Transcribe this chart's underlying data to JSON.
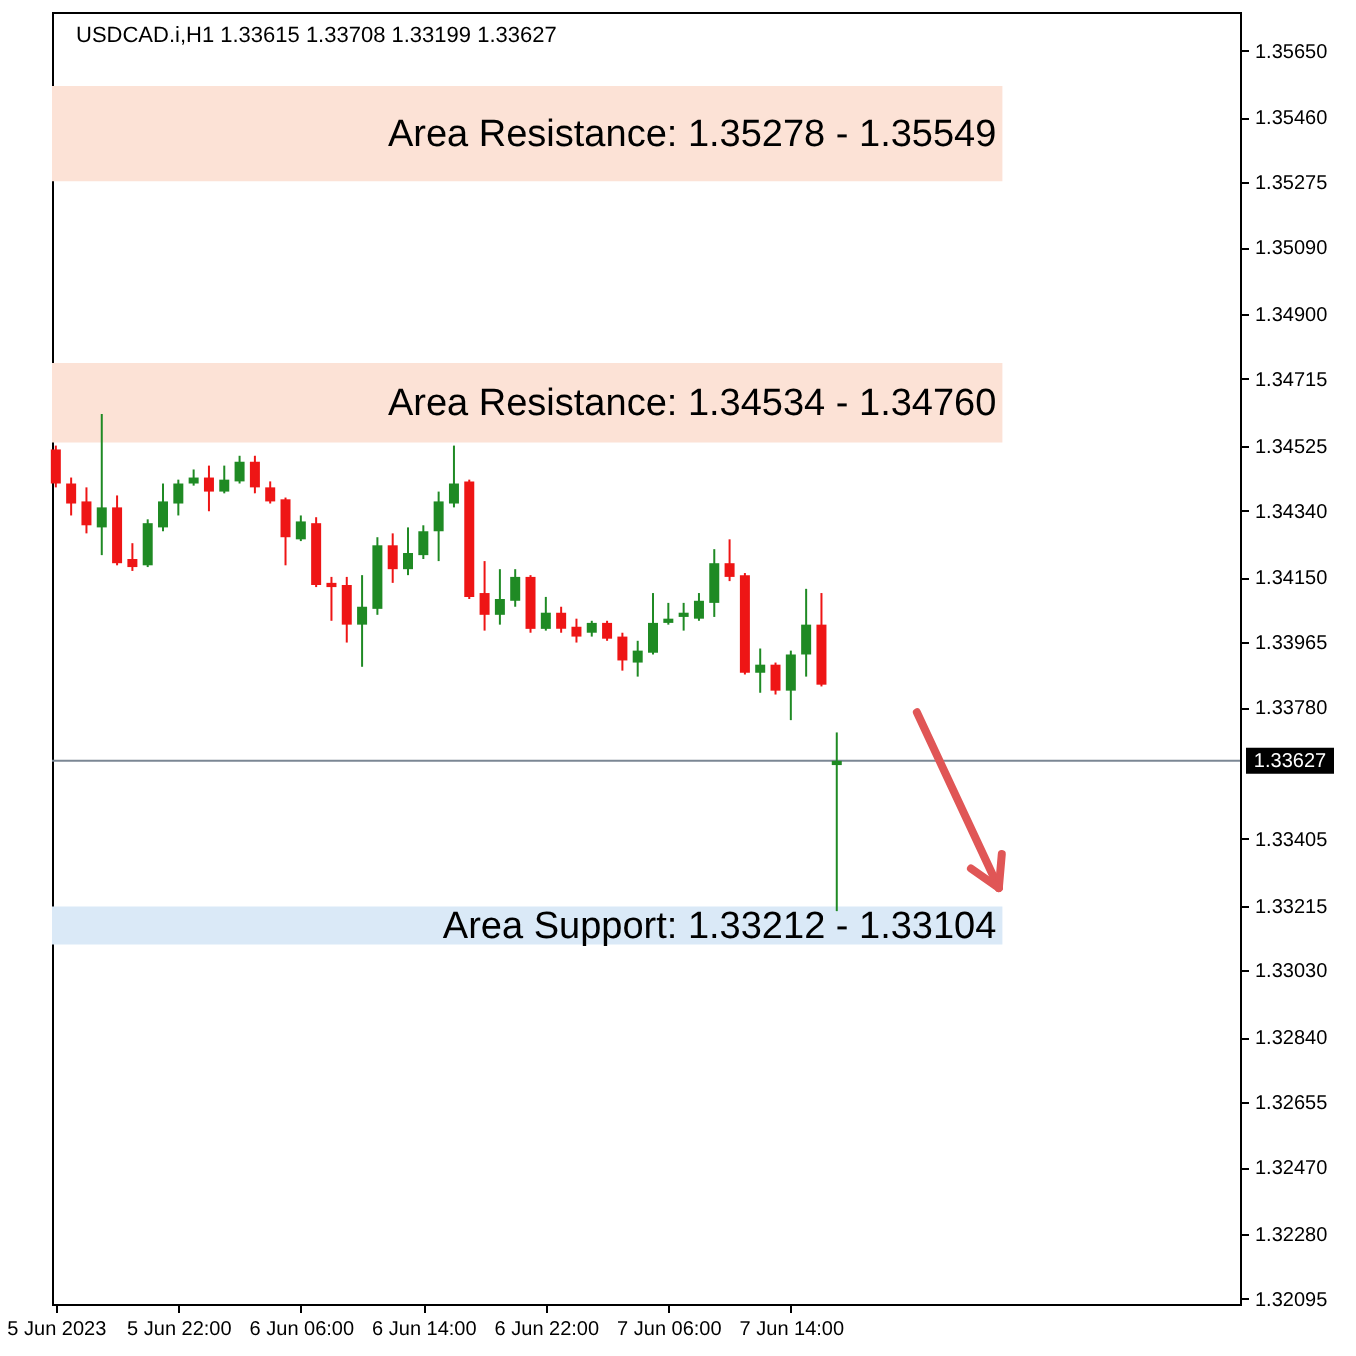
{
  "chart_data": {
    "type": "candlestick",
    "title": "USDCAD.i,H1  1.33615 1.33708 1.33199 1.33627",
    "x": [
      "2023-06-05T14:00",
      "2023-06-05T15:00",
      "2023-06-05T16:00",
      "2023-06-05T17:00",
      "2023-06-05T18:00",
      "2023-06-05T19:00",
      "2023-06-05T20:00",
      "2023-06-05T21:00",
      "2023-06-05T22:00",
      "2023-06-05T23:00",
      "2023-06-06T00:00",
      "2023-06-06T01:00",
      "2023-06-06T02:00",
      "2023-06-06T03:00",
      "2023-06-06T04:00",
      "2023-06-06T05:00",
      "2023-06-06T06:00",
      "2023-06-06T07:00",
      "2023-06-06T08:00",
      "2023-06-06T09:00",
      "2023-06-06T10:00",
      "2023-06-06T11:00",
      "2023-06-06T12:00",
      "2023-06-06T13:00",
      "2023-06-06T14:00",
      "2023-06-06T15:00",
      "2023-06-06T16:00",
      "2023-06-06T17:00",
      "2023-06-06T18:00",
      "2023-06-06T19:00",
      "2023-06-06T20:00",
      "2023-06-06T21:00",
      "2023-06-06T22:00",
      "2023-06-06T23:00",
      "2023-06-07T00:00",
      "2023-06-07T01:00",
      "2023-06-07T02:00",
      "2023-06-07T03:00",
      "2023-06-07T04:00",
      "2023-06-07T05:00",
      "2023-06-07T06:00",
      "2023-06-07T07:00",
      "2023-06-07T08:00",
      "2023-06-07T09:00",
      "2023-06-07T10:00",
      "2023-06-07T11:00",
      "2023-06-07T12:00",
      "2023-06-07T13:00",
      "2023-06-07T14:00",
      "2023-06-07T15:00",
      "2023-06-07T16:00",
      "2023-06-07T17:00"
    ],
    "ohlc": [
      [
        1.34514,
        1.34525,
        1.34406,
        1.34417
      ],
      [
        1.34417,
        1.34434,
        1.34326,
        1.3436
      ],
      [
        1.34366,
        1.34406,
        1.34275,
        1.34298
      ],
      [
        1.34292,
        1.34615,
        1.34213,
        1.34349
      ],
      [
        1.34349,
        1.34383,
        1.34184,
        1.3419
      ],
      [
        1.34202,
        1.34247,
        1.34168,
        1.34179
      ],
      [
        1.34184,
        1.34315,
        1.34179,
        1.34304
      ],
      [
        1.34292,
        1.34417,
        1.34281,
        1.34366
      ],
      [
        1.3436,
        1.34428,
        1.34326,
        1.34417
      ],
      [
        1.34417,
        1.34457,
        1.34411,
        1.34434
      ],
      [
        1.34434,
        1.34468,
        1.34338,
        1.34394
      ],
      [
        1.34394,
        1.34468,
        1.34389,
        1.34428
      ],
      [
        1.34423,
        1.34496,
        1.34417,
        1.34479
      ],
      [
        1.34479,
        1.34496,
        1.34389,
        1.34406
      ],
      [
        1.34406,
        1.34423,
        1.3436,
        1.34366
      ],
      [
        1.34372,
        1.34377,
        1.34184,
        1.34264
      ],
      [
        1.34258,
        1.34326,
        1.34253,
        1.34309
      ],
      [
        1.34304,
        1.34321,
        1.34122,
        1.34128
      ],
      [
        1.34134,
        1.34151,
        1.34026,
        1.34122
      ],
      [
        1.34128,
        1.34151,
        1.33964,
        1.34015
      ],
      [
        1.34015,
        1.34156,
        1.33895,
        1.34066
      ],
      [
        1.3406,
        1.34264,
        1.34043,
        1.34241
      ],
      [
        1.34241,
        1.34275,
        1.34134,
        1.34173
      ],
      [
        1.34173,
        1.34292,
        1.34156,
        1.34219
      ],
      [
        1.34213,
        1.34298,
        1.34202,
        1.34281
      ],
      [
        1.34281,
        1.34394,
        1.34196,
        1.34366
      ],
      [
        1.3436,
        1.34525,
        1.34349,
        1.34417
      ],
      [
        1.34423,
        1.34428,
        1.34088,
        1.34094
      ],
      [
        1.34105,
        1.34196,
        1.33998,
        1.34043
      ],
      [
        1.34043,
        1.34173,
        1.34015,
        1.34088
      ],
      [
        1.34083,
        1.34173,
        1.34066,
        1.34151
      ],
      [
        1.34151,
        1.34156,
        1.33992,
        1.34003
      ],
      [
        1.34003,
        1.34094,
        1.33998,
        1.34049
      ],
      [
        1.34049,
        1.34066,
        1.33992,
        1.34003
      ],
      [
        1.34009,
        1.34032,
        1.33964,
        1.33981
      ],
      [
        1.33992,
        1.34026,
        1.33981,
        1.3402
      ],
      [
        1.3402,
        1.34026,
        1.33969,
        1.33975
      ],
      [
        1.33981,
        1.33992,
        1.33884,
        1.33913
      ],
      [
        1.33907,
        1.33969,
        1.33867,
        1.33941
      ],
      [
        1.33935,
        1.34105,
        1.3393,
        1.3402
      ],
      [
        1.3402,
        1.34077,
        1.34015,
        1.34032
      ],
      [
        1.34037,
        1.34077,
        1.33998,
        1.34049
      ],
      [
        1.34032,
        1.34105,
        1.34026,
        1.34083
      ],
      [
        1.34077,
        1.3423,
        1.34037,
        1.3419
      ],
      [
        1.3419,
        1.34258,
        1.34139,
        1.34151
      ],
      [
        1.34156,
        1.34162,
        1.33873,
        1.33878
      ],
      [
        1.33878,
        1.33947,
        1.33821,
        1.33901
      ],
      [
        1.33901,
        1.33907,
        1.33816,
        1.33827
      ],
      [
        1.33827,
        1.33941,
        1.33743,
        1.3393
      ],
      [
        1.3393,
        1.34117,
        1.33867,
        1.34015
      ],
      [
        1.34015,
        1.34105,
        1.33839,
        1.33844
      ],
      [
        1.33615,
        1.33708,
        1.33199,
        1.33627
      ]
    ],
    "colors": [
      "#ee1515",
      "#ee1515",
      "#ee1515",
      "#1f8a24",
      "#ee1515",
      "#ee1515",
      "#1f8a24",
      "#1f8a24",
      "#1f8a24",
      "#1f8a24",
      "#ee1515",
      "#1f8a24",
      "#1f8a24",
      "#ee1515",
      "#ee1515",
      "#ee1515",
      "#1f8a24",
      "#ee1515",
      "#ee1515",
      "#ee1515",
      "#1f8a24",
      "#1f8a24",
      "#ee1515",
      "#1f8a24",
      "#1f8a24",
      "#1f8a24",
      "#1f8a24",
      "#ee1515",
      "#ee1515",
      "#1f8a24",
      "#1f8a24",
      "#ee1515",
      "#1f8a24",
      "#ee1515",
      "#ee1515",
      "#1f8a24",
      "#ee1515",
      "#ee1515",
      "#1f8a24",
      "#1f8a24",
      "#1f8a24",
      "#1f8a24",
      "#1f8a24",
      "#1f8a24",
      "#ee1515",
      "#ee1515",
      "#1f8a24",
      "#ee1515",
      "#1f8a24",
      "#1f8a24",
      "#ee1515",
      "#1f8a24"
    ],
    "xlim": [
      "2023-06-05T13:45",
      "2023-06-08T19:20"
    ],
    "xticks": [
      {
        "value": "2023-06-05T14:00",
        "label": "5 Jun 2023"
      },
      {
        "value": "2023-06-05T22:00",
        "label": "5 Jun 22:00"
      },
      {
        "value": "2023-06-06T06:00",
        "label": "6 Jun 06:00"
      },
      {
        "value": "2023-06-06T14:00",
        "label": "6 Jun 14:00"
      },
      {
        "value": "2023-06-06T22:00",
        "label": "6 Jun 22:00"
      },
      {
        "value": "2023-06-07T06:00",
        "label": "7 Jun 06:00"
      },
      {
        "value": "2023-06-07T14:00",
        "label": "7 Jun 14:00"
      }
    ],
    "ylim": [
      1.3208,
      1.3576
    ],
    "yticks": [
      {
        "value": 1.3565,
        "label": "1.35650"
      },
      {
        "value": 1.3546,
        "label": "1.35460"
      },
      1.35275,
      {
        "value": 1.3509,
        "label": "1.35090"
      },
      {
        "value": 1.349,
        "label": "1.34900"
      },
      1.34715,
      1.34525,
      {
        "value": 1.3434,
        "label": "1.34340"
      },
      {
        "value": 1.3415,
        "label": "1.34150"
      },
      1.33965,
      {
        "value": 1.3378,
        "label": "1.33780"
      },
      1.33405,
      1.33215,
      {
        "value": 1.3303,
        "label": "1.33030"
      },
      {
        "value": 1.3284,
        "label": "1.32840"
      },
      1.32655,
      {
        "value": 1.3247,
        "label": "1.32470"
      },
      {
        "value": 1.3228,
        "label": "1.32280"
      },
      1.32095
    ],
    "ref_lines": [
      {
        "axis": "y",
        "value": 1.33627,
        "label": "1.33627",
        "color": "#7b8794",
        "line_style": "solid"
      }
    ],
    "bands": [
      {
        "axis": "y",
        "from": 1.35278,
        "to": 1.35549,
        "label": "Area Resistance: 1.35278 - 1.35549",
        "color": "#fce2d6"
      },
      {
        "axis": "y",
        "from": 1.34534,
        "to": 1.3476,
        "label": "Area Resistance: 1.34534 - 1.34760",
        "color": "#fce2d6"
      },
      {
        "axis": "y",
        "from": 1.33104,
        "to": 1.33212,
        "label": "Area Support: 1.33212 - 1.33104",
        "color": "#dae9f7"
      }
    ],
    "grid": false
  }
}
